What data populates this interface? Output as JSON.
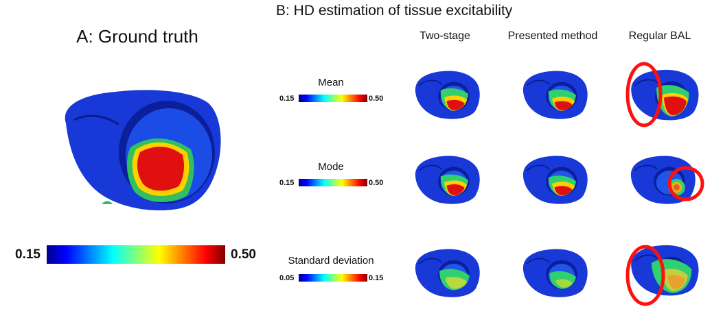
{
  "panel_a": {
    "title": "A: Ground truth",
    "colorbar": {
      "min": "0.15",
      "max": "0.50"
    }
  },
  "panel_b": {
    "title": "B: HD estimation of tissue excitability",
    "columns": [
      "Two-stage",
      "Presented method",
      "Regular BAL"
    ],
    "rows": [
      {
        "label": "Mean",
        "colorbar": {
          "min": "0.15",
          "max": "0.50"
        }
      },
      {
        "label": "Mode",
        "colorbar": {
          "min": "0.15",
          "max": "0.50"
        }
      },
      {
        "label": "Standard deviation",
        "colorbar": {
          "min": "0.05",
          "max": "0.15"
        }
      }
    ]
  },
  "colors": {
    "highlight": "#ff1010",
    "heart_base": "#1030d8"
  }
}
